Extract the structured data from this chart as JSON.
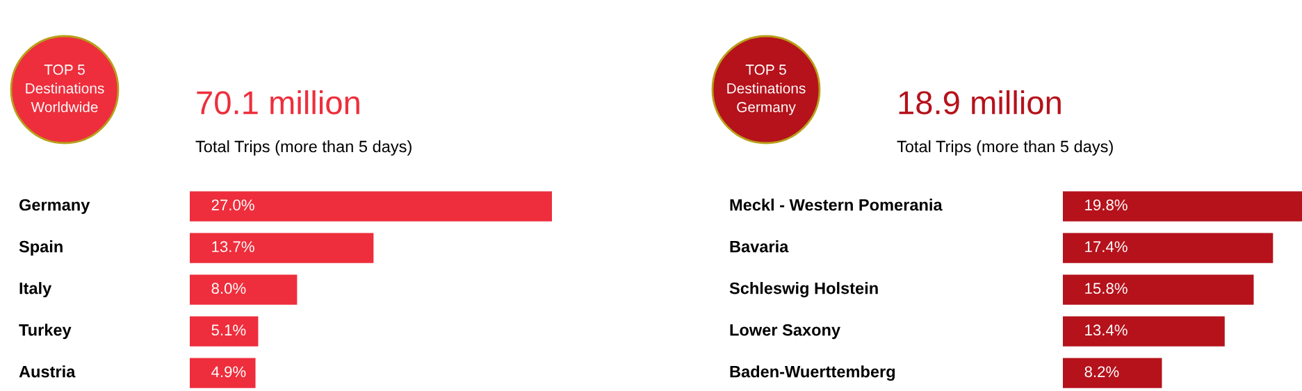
{
  "chart_data": [
    {
      "type": "bar",
      "orientation": "horizontal",
      "title": "TOP 5\nDestinations\nWorldwide",
      "subtitle": "70.1 million",
      "annotations": [
        "Total Trips (more than 5 days)"
      ],
      "categories": [
        "Germany",
        "Spain",
        "Italy",
        "Turkey",
        "Austria"
      ],
      "values": [
        27.0,
        13.7,
        8.0,
        5.1,
        4.9
      ],
      "value_labels": [
        "27.0%",
        "13.7%",
        "8.0%",
        "5.1%",
        "4.9%"
      ],
      "color": "#ee2e3c"
    },
    {
      "type": "bar",
      "orientation": "horizontal",
      "title": "TOP 5\nDestinations\nGermany",
      "subtitle": "18.9 million",
      "annotations": [
        "Total Trips (more than 5 days)"
      ],
      "categories": [
        "Meckl - Western Pomerania",
        "Bavaria",
        "Schleswig Holstein",
        "Lower Saxony",
        "Baden-Wuerttemberg"
      ],
      "values": [
        19.8,
        17.4,
        15.8,
        13.4,
        8.2
      ],
      "value_labels": [
        "19.8%",
        "17.4%",
        "15.8%",
        "13.4%",
        "8.2%"
      ],
      "color": "#b5121b"
    }
  ]
}
